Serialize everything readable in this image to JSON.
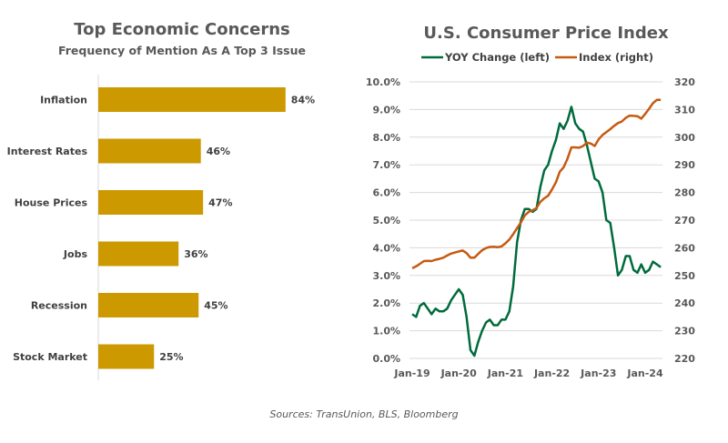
{
  "chart_data": [
    {
      "type": "bar",
      "orientation": "horizontal",
      "title": "Top Economic Concerns",
      "subtitle": "Frequency of Mention As A Top 3 Issue",
      "categories": [
        "Inflation",
        "Interest Rates",
        "House Prices",
        "Jobs",
        "Recession",
        "Stock Market"
      ],
      "values": [
        84,
        46,
        47,
        36,
        45,
        25
      ],
      "value_labels": [
        "84%",
        "46%",
        "47%",
        "36%",
        "45%",
        "25%"
      ],
      "unit": "%",
      "color": "#CC9900",
      "xlim": [
        0,
        100
      ]
    },
    {
      "type": "line",
      "title": "U.S. Consumer Price Index",
      "legend": [
        "YOY Change (left)",
        "Index (right)"
      ],
      "legend_position": "top",
      "x_tick_labels": [
        "Jan-19",
        "Jan-20",
        "Jan-21",
        "Jan-22",
        "Jan-23",
        "Jan-24"
      ],
      "x_start": "Jan-19",
      "x_end": "Apr-24",
      "y_left": {
        "label": "YOY Change",
        "range": [
          0,
          10
        ],
        "ticks": [
          "0.0%",
          "1.0%",
          "2.0%",
          "3.0%",
          "4.0%",
          "5.0%",
          "6.0%",
          "7.0%",
          "8.0%",
          "9.0%",
          "10.0%"
        ]
      },
      "y_right": {
        "label": "Index",
        "range": [
          220,
          320
        ],
        "ticks": [
          "220",
          "230",
          "240",
          "250",
          "260",
          "270",
          "280",
          "290",
          "300",
          "310",
          "320"
        ]
      },
      "grid": true,
      "series": [
        {
          "name": "YOY Change (left)",
          "axis": "left",
          "color": "#006B3C",
          "values": [
            1.6,
            1.5,
            1.9,
            2.0,
            1.8,
            1.6,
            1.8,
            1.7,
            1.7,
            1.8,
            2.1,
            2.3,
            2.5,
            2.3,
            1.5,
            0.3,
            0.1,
            0.6,
            1.0,
            1.3,
            1.4,
            1.2,
            1.2,
            1.4,
            1.4,
            1.7,
            2.6,
            4.2,
            5.0,
            5.4,
            5.4,
            5.3,
            5.4,
            6.2,
            6.8,
            7.0,
            7.5,
            7.9,
            8.5,
            8.3,
            8.6,
            9.1,
            8.5,
            8.3,
            8.2,
            7.7,
            7.1,
            6.5,
            6.4,
            6.0,
            5.0,
            4.9,
            4.0,
            3.0,
            3.2,
            3.7,
            3.7,
            3.2,
            3.1,
            3.4,
            3.1,
            3.2,
            3.5,
            3.4,
            3.3
          ]
        },
        {
          "name": "Index (right)",
          "axis": "right",
          "color": "#C55A11",
          "values": [
            252.6,
            253.3,
            254.2,
            255.2,
            255.3,
            255.2,
            255.7,
            256.0,
            256.4,
            257.2,
            257.9,
            258.3,
            258.7,
            259.0,
            258.1,
            256.4,
            256.4,
            257.8,
            259.1,
            259.9,
            260.3,
            260.4,
            260.2,
            260.5,
            261.6,
            263.0,
            264.9,
            267.1,
            269.2,
            271.7,
            273.0,
            273.6,
            274.3,
            276.6,
            277.9,
            278.8,
            281.1,
            283.7,
            287.5,
            289.1,
            292.3,
            296.3,
            296.3,
            296.2,
            296.8,
            298.0,
            297.7,
            296.8,
            299.2,
            300.8,
            301.8,
            302.9,
            304.1,
            305.1,
            305.7,
            307.0,
            307.8,
            307.7,
            307.6,
            306.7,
            308.4,
            310.3,
            312.3,
            313.5,
            313.5
          ]
        }
      ]
    }
  ],
  "footer": {
    "sources": "Sources: TransUnion,  BLS, Bloomberg"
  }
}
